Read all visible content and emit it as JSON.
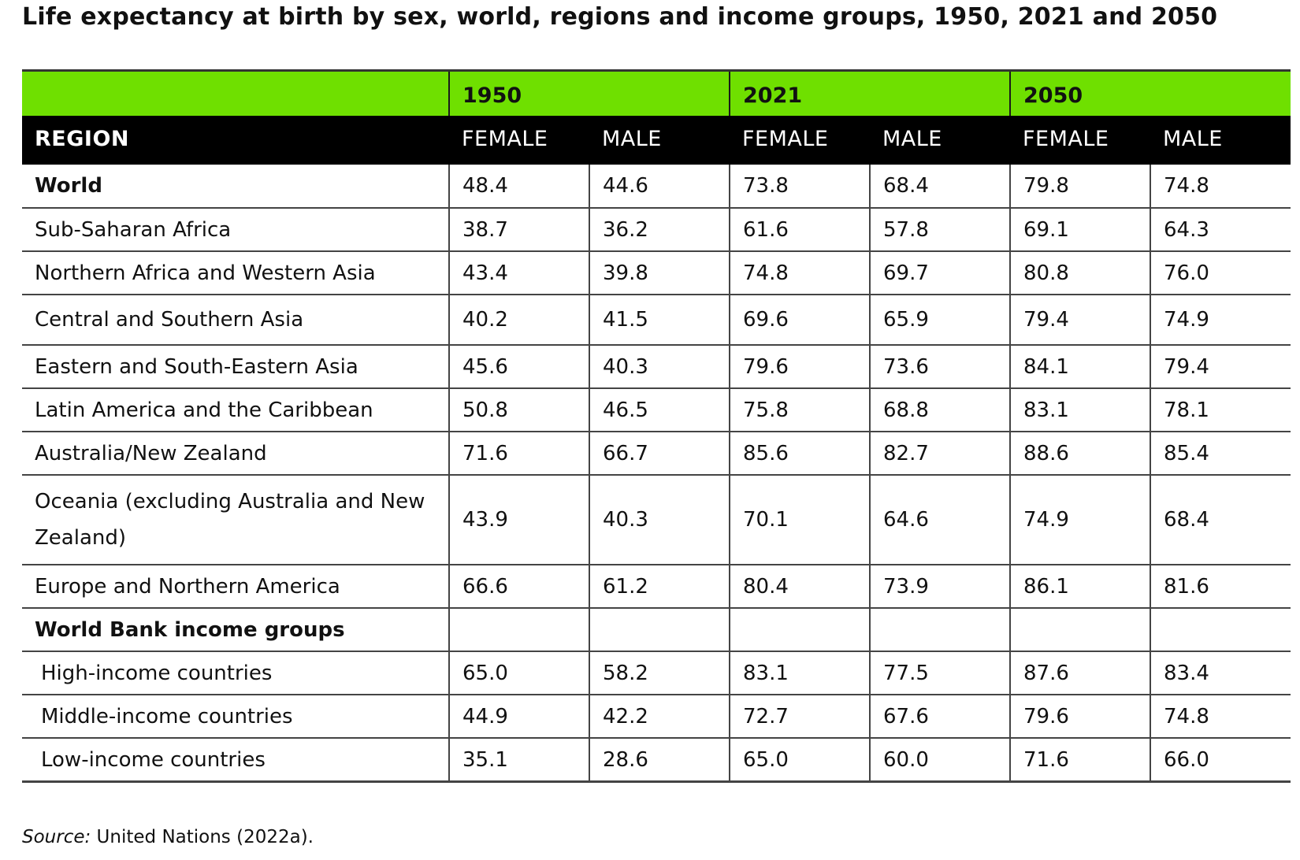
{
  "title": "Life expectancy at birth by sex, world, regions and income groups, 1950, 2021 and 2050",
  "header": {
    "years": [
      "1950",
      "2021",
      "2050"
    ],
    "region_label": "REGION",
    "female_label": "FEMALE",
    "male_label": "MALE"
  },
  "rows": [
    {
      "name": "World",
      "values": [
        "48.4",
        "44.6",
        "73.8",
        "68.4",
        "79.8",
        "74.8"
      ]
    },
    {
      "name": "Sub-Saharan Africa",
      "values": [
        "38.7",
        "36.2",
        "61.6",
        "57.8",
        "69.1",
        "64.3"
      ]
    },
    {
      "name": "Northern Africa and Western Asia",
      "values": [
        "43.4",
        "39.8",
        "74.8",
        "69.7",
        "80.8",
        "76.0"
      ]
    },
    {
      "name": "Central and Southern Asia",
      "values": [
        "40.2",
        "41.5",
        "69.6",
        "65.9",
        "79.4",
        "74.9"
      ]
    },
    {
      "name": "Eastern and South-Eastern Asia",
      "values": [
        "45.6",
        "40.3",
        "79.6",
        "73.6",
        "84.1",
        "79.4"
      ]
    },
    {
      "name": "Latin America and the Caribbean",
      "values": [
        "50.8",
        "46.5",
        "75.8",
        "68.8",
        "83.1",
        "78.1"
      ]
    },
    {
      "name": "Australia/New Zealand",
      "values": [
        "71.6",
        "66.7",
        "85.6",
        "82.7",
        "88.6",
        "85.4"
      ]
    },
    {
      "name": "Oceania (excluding Australia and New Zealand)",
      "values": [
        "43.9",
        "40.3",
        "70.1",
        "64.6",
        "74.9",
        "68.4"
      ]
    },
    {
      "name": "Europe and Northern America",
      "values": [
        "66.6",
        "61.2",
        "80.4",
        "73.9",
        "86.1",
        "81.6"
      ]
    },
    {
      "name": "World Bank income groups",
      "values": [
        "",
        "",
        "",
        "",
        "",
        ""
      ]
    },
    {
      "name": "High-income countries",
      "values": [
        "65.0",
        "58.2",
        "83.1",
        "77.5",
        "87.6",
        "83.4"
      ]
    },
    {
      "name": "Middle-income countries",
      "values": [
        "44.9",
        "42.2",
        "72.7",
        "67.6",
        "79.6",
        "74.8"
      ]
    },
    {
      "name": "Low-income countries",
      "values": [
        "35.1",
        "28.6",
        "65.0",
        "60.0",
        "71.6",
        "66.0"
      ]
    }
  ],
  "source": {
    "label": "Source:",
    "text": " United Nations (2022a)."
  },
  "colors": {
    "year_band": "#6fe000",
    "header_band": "#000000",
    "header_text": "#ffffff"
  }
}
